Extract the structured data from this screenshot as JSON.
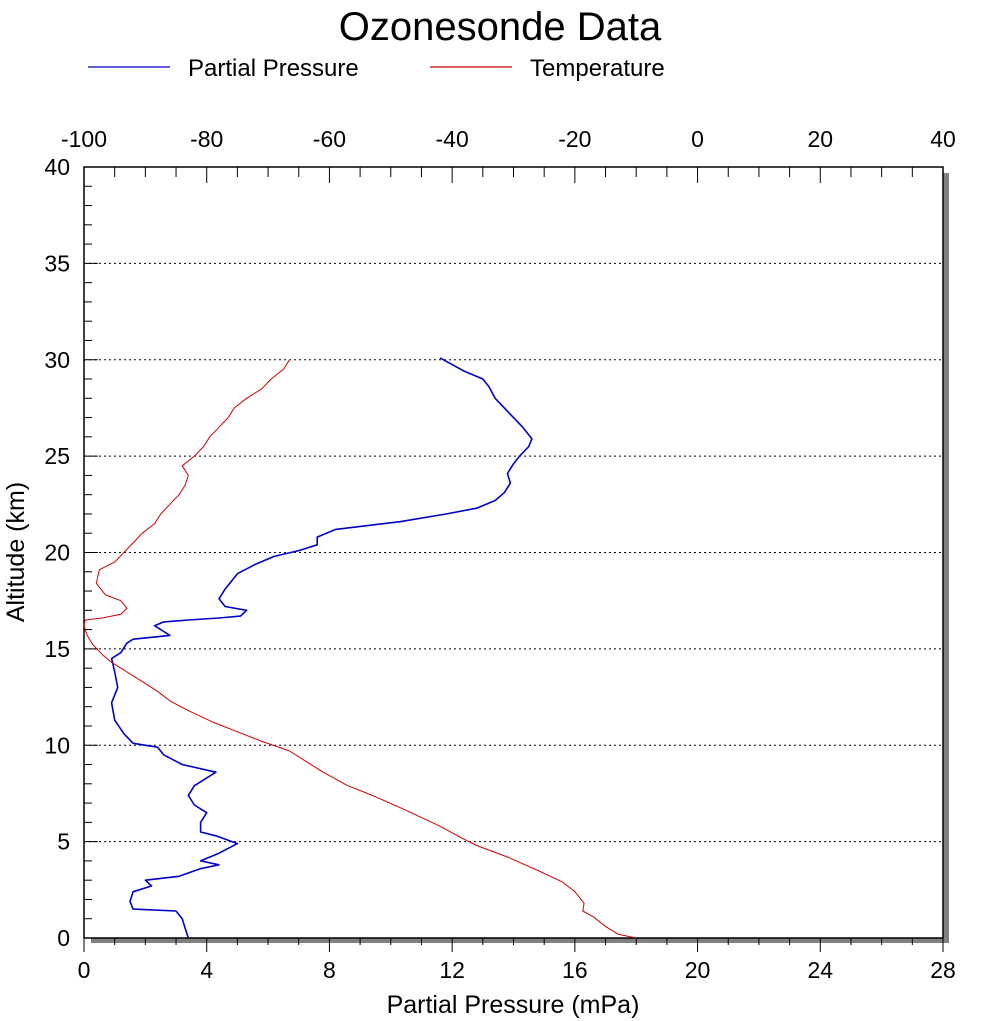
{
  "chart_data": {
    "type": "line",
    "title": "Ozonesonde Data",
    "xlabel": "Partial Pressure (mPa)",
    "ylabel": "Altitude (km)",
    "x_bottom_range": [
      0,
      28
    ],
    "x_bottom_ticks": [
      "0",
      "4",
      "8",
      "12",
      "16",
      "20",
      "24",
      "28"
    ],
    "x_top_range": [
      -100,
      40
    ],
    "x_top_ticks": [
      "-100",
      "-80",
      "-60",
      "-40",
      "-20",
      "0",
      "20",
      "40"
    ],
    "y_range": [
      0,
      40
    ],
    "y_ticks": [
      "0",
      "5",
      "10",
      "15",
      "20",
      "25",
      "30",
      "35",
      "40"
    ],
    "grid": "horizontal dotted lines at every 5 km",
    "legend_position": "top-left",
    "series": [
      {
        "name": "Partial Pressure",
        "axis": "bottom",
        "color": "#0000cc",
        "points": [
          [
            3.4,
            0.0
          ],
          [
            3.3,
            0.5
          ],
          [
            3.2,
            1.0
          ],
          [
            3.0,
            1.4
          ],
          [
            1.6,
            1.5
          ],
          [
            1.5,
            1.9
          ],
          [
            1.6,
            2.4
          ],
          [
            2.2,
            2.7
          ],
          [
            2.0,
            3.0
          ],
          [
            3.1,
            3.2
          ],
          [
            3.8,
            3.6
          ],
          [
            4.4,
            3.8
          ],
          [
            3.8,
            4.0
          ],
          [
            4.4,
            4.4
          ],
          [
            5.0,
            4.9
          ],
          [
            4.3,
            5.3
          ],
          [
            3.8,
            5.5
          ],
          [
            3.8,
            6.0
          ],
          [
            4.0,
            6.5
          ],
          [
            3.6,
            6.9
          ],
          [
            3.4,
            7.4
          ],
          [
            3.6,
            7.9
          ],
          [
            4.3,
            8.6
          ],
          [
            3.2,
            9.0
          ],
          [
            2.6,
            9.5
          ],
          [
            2.4,
            9.9
          ],
          [
            1.6,
            10.1
          ],
          [
            1.3,
            10.6
          ],
          [
            1.0,
            11.3
          ],
          [
            0.9,
            12.2
          ],
          [
            1.1,
            13.0
          ],
          [
            1.0,
            13.8
          ],
          [
            0.9,
            14.5
          ],
          [
            1.2,
            14.8
          ],
          [
            1.4,
            15.3
          ],
          [
            1.6,
            15.5
          ],
          [
            2.8,
            15.7
          ],
          [
            2.3,
            16.2
          ],
          [
            2.6,
            16.4
          ],
          [
            3.4,
            16.5
          ],
          [
            4.4,
            16.6
          ],
          [
            5.1,
            16.7
          ],
          [
            5.3,
            17.0
          ],
          [
            4.6,
            17.2
          ],
          [
            4.4,
            17.6
          ],
          [
            4.6,
            18.1
          ],
          [
            5.0,
            18.9
          ],
          [
            5.6,
            19.4
          ],
          [
            6.2,
            19.8
          ],
          [
            7.0,
            20.1
          ],
          [
            7.6,
            20.4
          ],
          [
            7.6,
            20.8
          ],
          [
            8.2,
            21.2
          ],
          [
            10.3,
            21.6
          ],
          [
            11.8,
            22.0
          ],
          [
            12.8,
            22.3
          ],
          [
            13.4,
            22.7
          ],
          [
            13.7,
            23.1
          ],
          [
            13.9,
            23.6
          ],
          [
            13.8,
            24.1
          ],
          [
            14.0,
            24.6
          ],
          [
            14.2,
            25.0
          ],
          [
            14.5,
            25.5
          ],
          [
            14.6,
            25.9
          ],
          [
            14.3,
            26.5
          ],
          [
            14.0,
            27.0
          ],
          [
            13.7,
            27.5
          ],
          [
            13.4,
            28.0
          ],
          [
            13.2,
            28.6
          ],
          [
            13.0,
            29.0
          ],
          [
            12.4,
            29.4
          ],
          [
            11.6,
            30.1
          ]
        ]
      },
      {
        "name": "Temperature",
        "axis": "top",
        "color": "#cc0000",
        "points": [
          [
            -10,
            0.0
          ],
          [
            -13,
            0.2
          ],
          [
            -15,
            0.6
          ],
          [
            -17,
            1.1
          ],
          [
            -18.7,
            1.4
          ],
          [
            -18.5,
            1.8
          ],
          [
            -20,
            2.4
          ],
          [
            -22,
            2.9
          ],
          [
            -26,
            3.5
          ],
          [
            -31,
            4.2
          ],
          [
            -36,
            4.8
          ],
          [
            -38.5,
            5.2
          ],
          [
            -42,
            5.8
          ],
          [
            -48,
            6.7
          ],
          [
            -53,
            7.4
          ],
          [
            -57,
            7.9
          ],
          [
            -61,
            8.6
          ],
          [
            -64,
            9.2
          ],
          [
            -66.5,
            9.7
          ],
          [
            -71,
            10.2
          ],
          [
            -75,
            10.7
          ],
          [
            -79,
            11.2
          ],
          [
            -83,
            11.8
          ],
          [
            -86,
            12.3
          ],
          [
            -88,
            12.8
          ],
          [
            -90.5,
            13.3
          ],
          [
            -93,
            13.8
          ],
          [
            -95.5,
            14.3
          ],
          [
            -97,
            14.7
          ],
          [
            -98.5,
            15.2
          ],
          [
            -99.5,
            15.7
          ],
          [
            -100,
            16.2
          ],
          [
            -99.8,
            16.5
          ],
          [
            -97,
            16.6
          ],
          [
            -94,
            16.8
          ],
          [
            -93,
            17.1
          ],
          [
            -94,
            17.5
          ],
          [
            -96.5,
            17.8
          ],
          [
            -98,
            18.4
          ],
          [
            -97.5,
            19.1
          ],
          [
            -95,
            19.5
          ],
          [
            -93.5,
            20.0
          ],
          [
            -92,
            20.5
          ],
          [
            -90.5,
            21.0
          ],
          [
            -88.5,
            21.5
          ],
          [
            -87.5,
            22.0
          ],
          [
            -86,
            22.5
          ],
          [
            -84.5,
            23.0
          ],
          [
            -83.5,
            23.5
          ],
          [
            -83,
            24.0
          ],
          [
            -84,
            24.5
          ],
          [
            -82,
            25.0
          ],
          [
            -80.5,
            25.5
          ],
          [
            -79.5,
            26.0
          ],
          [
            -78,
            26.5
          ],
          [
            -76.5,
            27.0
          ],
          [
            -75.5,
            27.5
          ],
          [
            -73.5,
            28.0
          ],
          [
            -71,
            28.5
          ],
          [
            -69.5,
            29.0
          ],
          [
            -67.5,
            29.5
          ],
          [
            -66.5,
            30.0
          ]
        ]
      }
    ]
  }
}
